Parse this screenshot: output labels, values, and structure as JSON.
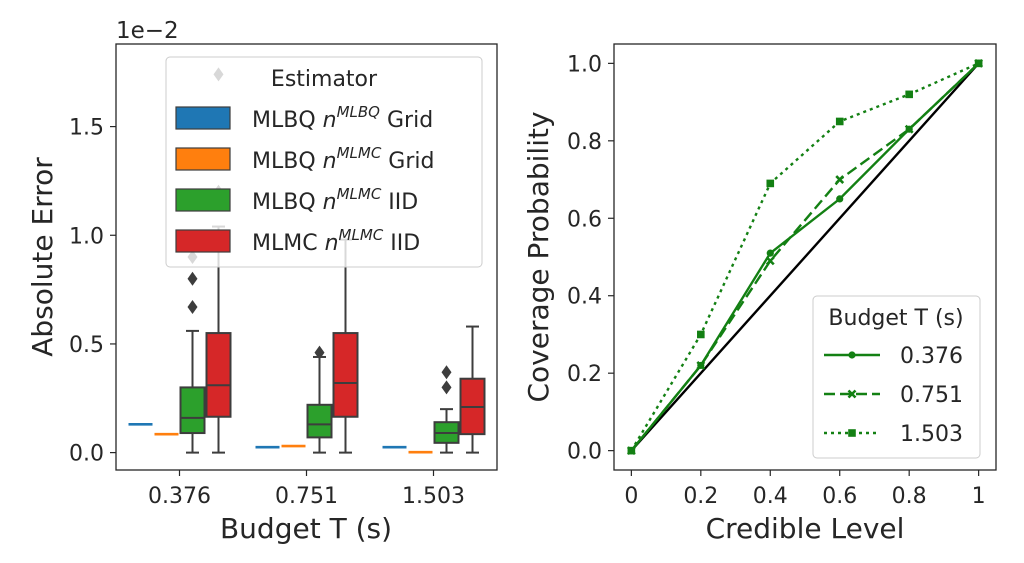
{
  "chart_data": [
    {
      "type": "box",
      "xlabel": "Budget T (s)",
      "ylabel": "Absolute Error",
      "offset_text": "1e−2",
      "ylim": [
        -0.08,
        1.88
      ],
      "yticks": [
        0.0,
        0.5,
        1.0,
        1.5
      ],
      "ytick_labels": [
        "0.0",
        "0.5",
        "1.0",
        "1.5"
      ],
      "categories": [
        "0.376",
        "0.751",
        "1.503"
      ],
      "legend": {
        "title": "Estimator",
        "placement": "top-right",
        "entries": [
          {
            "prefix": "MLBQ ",
            "var": "n",
            "sup": "MLBQ",
            "suffix": " Grid",
            "color": "#1f77b4"
          },
          {
            "prefix": "MLBQ ",
            "var": "n",
            "sup": "MLMC",
            "suffix": " Grid",
            "color": "#ff7f0e"
          },
          {
            "prefix": "MLBQ ",
            "var": "n",
            "sup": "MLMC",
            "suffix": " IID",
            "color": "#2ca02c"
          },
          {
            "prefix": "MLMC ",
            "var": "n",
            "sup": "MLMC",
            "suffix": " IID",
            "color": "#d62728"
          }
        ]
      },
      "series": [
        {
          "color": "#1f77b4",
          "boxes": [
            {
              "q1": 0.13,
              "median": 0.13,
              "q3": 0.13,
              "whislo": 0.13,
              "whishi": 0.13,
              "fliers": []
            },
            {
              "q1": 0.025,
              "median": 0.025,
              "q3": 0.025,
              "whislo": 0.025,
              "whishi": 0.025,
              "fliers": []
            },
            {
              "q1": 0.025,
              "median": 0.025,
              "q3": 0.025,
              "whislo": 0.025,
              "whishi": 0.025,
              "fliers": []
            }
          ]
        },
        {
          "color": "#ff7f0e",
          "boxes": [
            {
              "q1": 0.085,
              "median": 0.085,
              "q3": 0.085,
              "whislo": 0.085,
              "whishi": 0.085,
              "fliers": []
            },
            {
              "q1": 0.03,
              "median": 0.03,
              "q3": 0.03,
              "whislo": 0.03,
              "whishi": 0.03,
              "fliers": []
            },
            {
              "q1": 0.002,
              "median": 0.002,
              "q3": 0.002,
              "whislo": 0.002,
              "whishi": 0.002,
              "fliers": []
            }
          ]
        },
        {
          "color": "#2ca02c",
          "boxes": [
            {
              "q1": 0.09,
              "median": 0.16,
              "q3": 0.3,
              "whislo": 0.0,
              "whishi": 0.56,
              "fliers": [
                0.67,
                0.8,
                0.9
              ]
            },
            {
              "q1": 0.07,
              "median": 0.13,
              "q3": 0.22,
              "whislo": 0.0,
              "whishi": 0.44,
              "fliers": [
                0.46
              ]
            },
            {
              "q1": 0.045,
              "median": 0.09,
              "q3": 0.14,
              "whislo": 0.0,
              "whishi": 0.2,
              "fliers": [
                0.3,
                0.37
              ]
            }
          ]
        },
        {
          "color": "#d62728",
          "boxes": [
            {
              "q1": 0.165,
              "median": 0.31,
              "q3": 0.55,
              "whislo": 0.0,
              "whishi": 1.04,
              "fliers": [
                1.2,
                1.74
              ]
            },
            {
              "q1": 0.165,
              "median": 0.32,
              "q3": 0.55,
              "whislo": 0.0,
              "whishi": 0.98,
              "fliers": []
            },
            {
              "q1": 0.085,
              "median": 0.21,
              "q3": 0.34,
              "whislo": 0.0,
              "whishi": 0.58,
              "fliers": []
            }
          ]
        }
      ]
    },
    {
      "type": "line",
      "xlabel": "Credible Level",
      "ylabel": "Coverage Probability",
      "xlim": [
        -0.05,
        1.05
      ],
      "ylim": [
        -0.05,
        1.05
      ],
      "xticks": [
        0,
        0.2,
        0.4,
        0.6,
        0.8,
        1
      ],
      "xtick_labels": [
        "0",
        "0.2",
        "0.4",
        "0.6",
        "0.8",
        "1"
      ],
      "yticks": [
        0.0,
        0.2,
        0.4,
        0.6,
        0.8,
        1.0
      ],
      "ytick_labels": [
        "0.0",
        "0.2",
        "0.4",
        "0.6",
        "0.8",
        "1.0"
      ],
      "reference_line": {
        "x": [
          0,
          1
        ],
        "y": [
          0,
          1
        ],
        "color": "#000000"
      },
      "legend": {
        "title": "Budget T (s)",
        "placement": "lower-right"
      },
      "series": [
        {
          "name": "0.376",
          "style": "solid",
          "marker": "circle",
          "color": "#138013",
          "x": [
            0,
            0.2,
            0.4,
            0.6,
            0.8,
            1
          ],
          "y": [
            0,
            0.22,
            0.51,
            0.65,
            0.83,
            1.0
          ]
        },
        {
          "name": "0.751",
          "style": "dashed",
          "marker": "x",
          "color": "#138013",
          "x": [
            0,
            0.2,
            0.4,
            0.6,
            0.8,
            1
          ],
          "y": [
            0,
            0.22,
            0.49,
            0.7,
            0.83,
            1.0
          ]
        },
        {
          "name": "1.503",
          "style": "dotted",
          "marker": "square",
          "color": "#138013",
          "x": [
            0,
            0.2,
            0.4,
            0.6,
            0.8,
            1
          ],
          "y": [
            0,
            0.3,
            0.69,
            0.85,
            0.92,
            1.0
          ]
        }
      ]
    }
  ]
}
